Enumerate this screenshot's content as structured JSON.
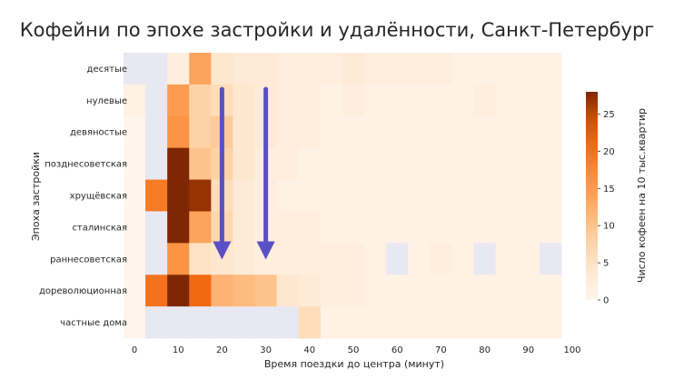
{
  "chart_data": {
    "type": "heatmap",
    "title": "Кофейни по эпохе застройки и удалённости, Санкт-Петербург",
    "xlabel": "Время поездки до центра (минут)",
    "ylabel": "Эпоха застройки",
    "colorbar_label": "Число кофеен на 10 тыс.квартир",
    "x_ticks": [
      "0",
      "10",
      "20",
      "30",
      "40",
      "50",
      "60",
      "70",
      "80",
      "90",
      "100"
    ],
    "colorbar_ticks": [
      "0",
      "5",
      "10",
      "15",
      "20",
      "25"
    ],
    "value_range": [
      0,
      28
    ],
    "missing_color": "#e8e8f2",
    "x_bins": [
      0,
      5,
      10,
      15,
      20,
      25,
      30,
      35,
      40,
      45,
      50,
      55,
      60,
      65,
      70,
      75,
      80,
      85,
      90,
      95,
      100
    ],
    "categories": [
      "десятые",
      "нулевые",
      "девяностые",
      "позднесоветская",
      "хрущёвская",
      "сталинская",
      "раннесоветская",
      "дореволюционная",
      "частные дома"
    ],
    "values": [
      [
        null,
        null,
        2,
        14,
        4,
        3,
        3,
        2,
        2,
        2,
        3,
        2,
        2,
        2,
        2,
        1,
        1,
        1,
        1,
        1
      ],
      [
        1,
        null,
        15,
        8,
        6,
        4,
        3,
        2,
        2,
        1,
        2,
        1,
        1,
        1,
        1,
        1,
        2,
        1,
        1,
        1
      ],
      [
        0,
        null,
        16,
        8,
        9,
        4,
        3,
        2,
        2,
        1,
        1,
        1,
        1,
        1,
        1,
        1,
        1,
        1,
        1,
        1
      ],
      [
        0,
        null,
        28,
        10,
        8,
        4,
        2,
        2,
        1,
        1,
        1,
        1,
        1,
        1,
        1,
        1,
        1,
        1,
        1,
        1
      ],
      [
        0,
        19,
        28,
        27,
        6,
        3,
        2,
        1,
        1,
        1,
        1,
        1,
        1,
        1,
        1,
        1,
        1,
        1,
        1,
        1
      ],
      [
        0,
        null,
        28,
        14,
        7,
        3,
        2,
        2,
        2,
        1,
        1,
        1,
        1,
        1,
        1,
        1,
        1,
        1,
        1,
        1
      ],
      [
        0,
        null,
        16,
        5,
        4,
        3,
        2,
        2,
        2,
        2,
        2,
        1,
        null,
        1,
        2,
        1,
        null,
        1,
        1,
        null
      ],
      [
        0,
        20,
        28,
        21,
        12,
        11,
        10,
        4,
        3,
        2,
        2,
        1,
        1,
        1,
        1,
        1,
        1,
        1,
        1,
        1
      ],
      [
        0,
        null,
        null,
        null,
        null,
        null,
        null,
        null,
        6,
        1,
        1,
        1,
        1,
        1,
        1,
        1,
        1,
        1,
        1,
        1
      ]
    ],
    "arrows": [
      {
        "x": 20,
        "from_category": "нулевые",
        "to_category": "раннесоветская"
      },
      {
        "x": 30,
        "from_category": "нулевые",
        "to_category": "раннесоветская"
      }
    ],
    "arrow_color": "#5b4fc4",
    "legend": "right",
    "grid": false
  }
}
